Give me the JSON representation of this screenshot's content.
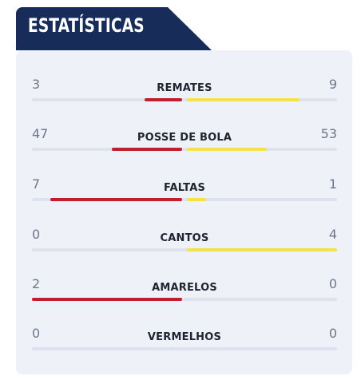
{
  "header": {
    "title": "ESTATÍSTICAS"
  },
  "colors": {
    "header_bg": "#182c5a",
    "home_bar": "#c01f2f",
    "away_bar": "#f5e24a",
    "track": "#dde2ec",
    "card_bg": "#eef1f8"
  },
  "stats": [
    {
      "label": "REMATES",
      "home": "3",
      "away": "9",
      "home_fraction": 0.25,
      "away_fraction": 0.75
    },
    {
      "label": "POSSE DE BOLA",
      "home": "47",
      "away": "53",
      "home_fraction": 0.47,
      "away_fraction": 0.53
    },
    {
      "label": "FALTAS",
      "home": "7",
      "away": "1",
      "home_fraction": 0.875,
      "away_fraction": 0.125
    },
    {
      "label": "CANTOS",
      "home": "0",
      "away": "4",
      "home_fraction": 0,
      "away_fraction": 1
    },
    {
      "label": "AMARELOS",
      "home": "2",
      "away": "0",
      "home_fraction": 1,
      "away_fraction": 0
    },
    {
      "label": "VERMELHOS",
      "home": "0",
      "away": "0",
      "home_fraction": 0,
      "away_fraction": 0
    }
  ]
}
